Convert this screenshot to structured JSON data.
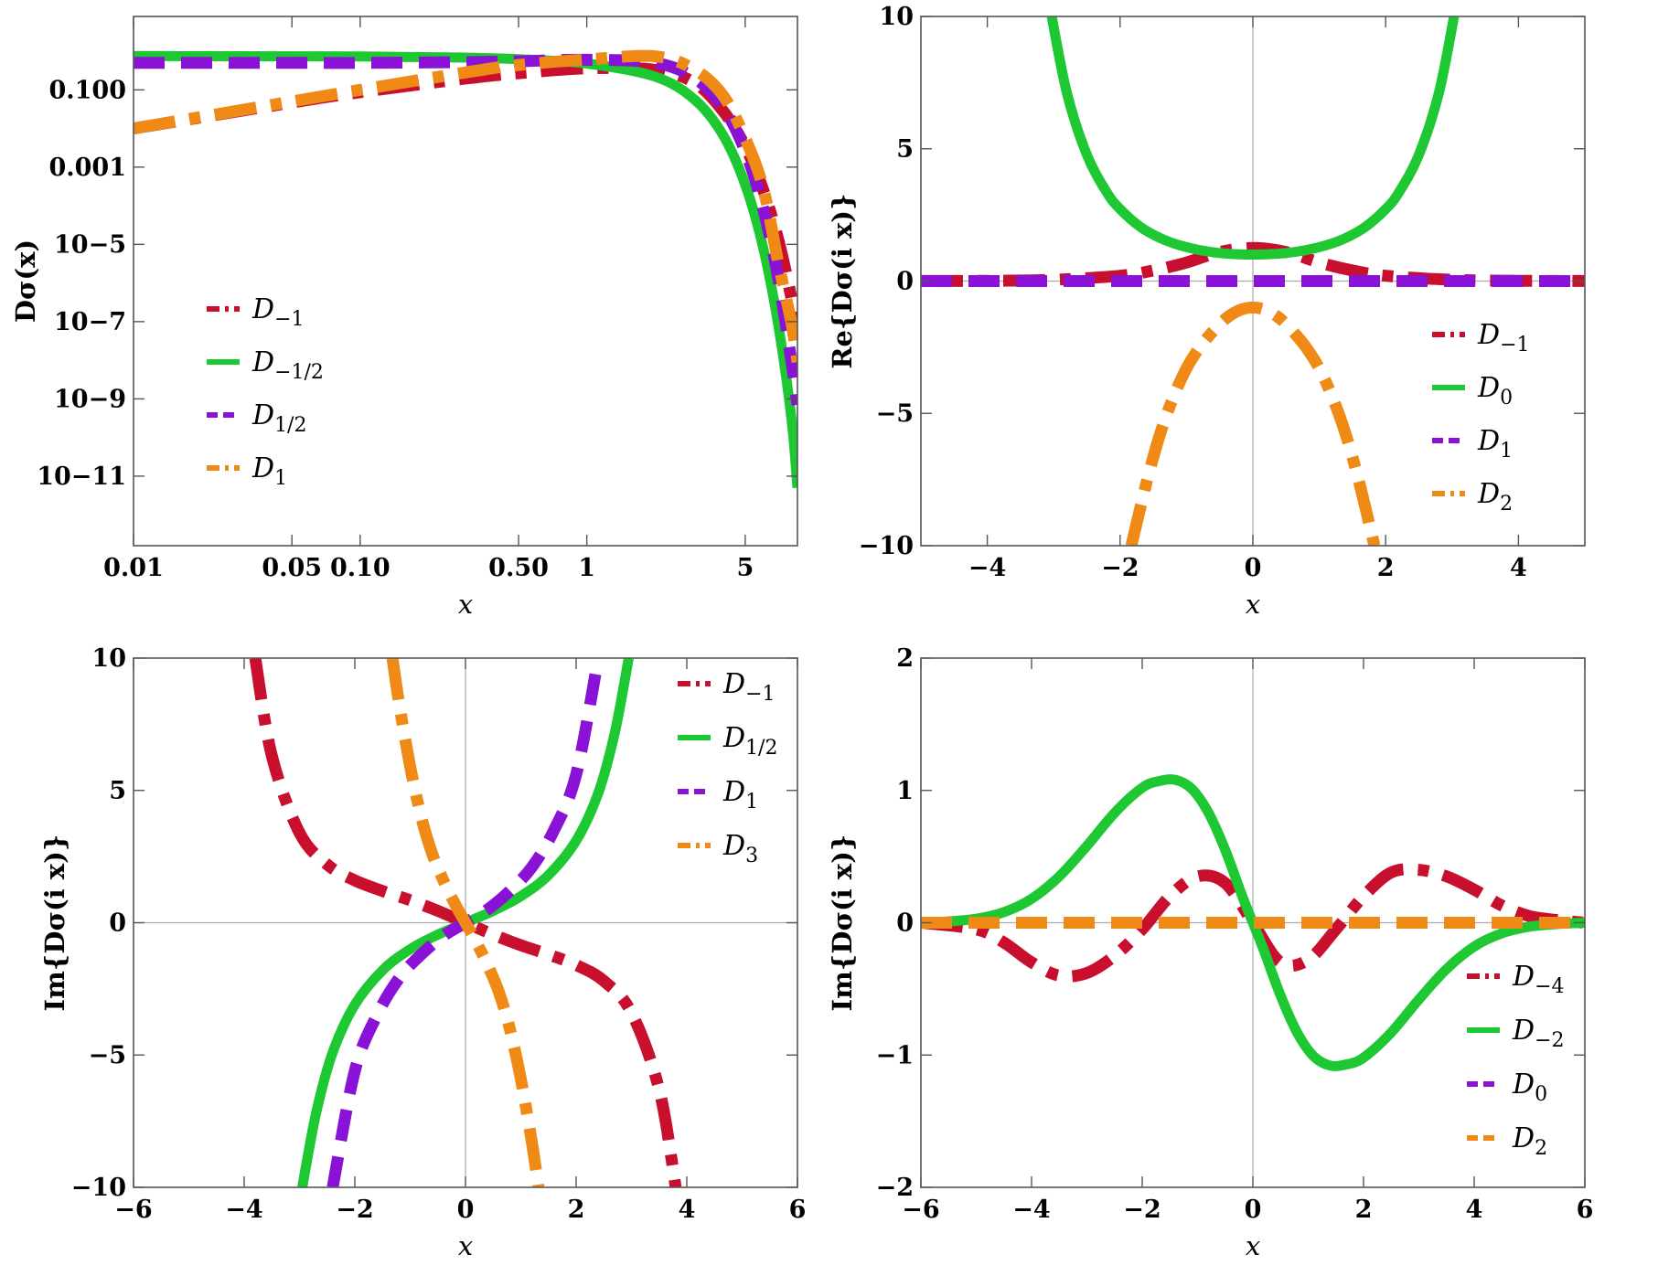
{
  "colors": {
    "red": "#c8102e",
    "green": "#1ec832",
    "purple": "#8a12d6",
    "orange": "#f08a16",
    "axis": "#555555",
    "origin": "#aaaaaa"
  },
  "chart_data": [
    {
      "id": "p1",
      "type": "line",
      "scale": "log-log",
      "xlabel": "x",
      "ylabel": "Dσ(x)",
      "xlim": [
        0.01,
        8.5
      ],
      "ylog_lim": [
        -12.8,
        0.9
      ],
      "xticks": [
        {
          "v": 0.01,
          "label": "0.01"
        },
        {
          "v": 0.05,
          "label": "0.05"
        },
        {
          "v": 0.1,
          "label": "0.10"
        },
        {
          "v": 0.5,
          "label": "0.50"
        },
        {
          "v": 1,
          "label": "1"
        },
        {
          "v": 5,
          "label": "5"
        }
      ],
      "yticks": [
        {
          "e": -1,
          "label": "0.100"
        },
        {
          "e": -3,
          "label": "0.001"
        },
        {
          "e": -5,
          "label": "10−5"
        },
        {
          "e": -7,
          "label": "10−7"
        },
        {
          "e": -9,
          "label": "10−9"
        },
        {
          "e": -11,
          "label": "10−11"
        }
      ],
      "legend_position": "middle-left",
      "series": [
        {
          "name": "D−1",
          "sub": "−1",
          "color": "red",
          "style": "dashdot",
          "x": [
            0.01,
            0.05,
            0.1,
            0.3,
            0.5,
            1,
            2,
            3,
            4,
            5,
            6,
            7,
            8,
            8.5
          ],
          "y": [
            0.01,
            0.047,
            0.087,
            0.2,
            0.27,
            0.36,
            0.33,
            0.15,
            0.028,
            0.0034,
            0.00026,
            1.3e-05,
            4e-07,
            6e-08
          ]
        },
        {
          "name": "D−1/2",
          "sub": "−1/2",
          "color": "green",
          "style": "solid",
          "x": [
            0.01,
            0.05,
            0.1,
            0.3,
            0.5,
            1,
            2,
            3,
            4,
            5,
            6,
            7,
            8,
            8.5
          ],
          "y": [
            0.75,
            0.74,
            0.73,
            0.68,
            0.62,
            0.48,
            0.22,
            0.055,
            0.0066,
            0.00035,
            8.2e-06,
            8e-08,
            3e-10,
            5e-12
          ]
        },
        {
          "name": "D1/2",
          "sub": "1/2",
          "color": "purple",
          "style": "dashed",
          "x": [
            0.01,
            0.05,
            0.1,
            0.3,
            0.5,
            1,
            2,
            3,
            4,
            5,
            6,
            7,
            8,
            8.5
          ],
          "y": [
            0.5,
            0.5,
            0.5,
            0.52,
            0.55,
            0.6,
            0.5,
            0.2,
            0.035,
            0.0026,
            8.55e-05,
            1.3e-06,
            9e-09,
            7e-10
          ]
        },
        {
          "name": "D1",
          "sub": "1",
          "color": "orange",
          "style": "dashdot",
          "x": [
            0.01,
            0.05,
            0.1,
            0.3,
            0.5,
            1,
            2,
            3,
            4,
            5,
            6,
            7,
            8,
            8.5
          ],
          "y": [
            0.01,
            0.05,
            0.1,
            0.29,
            0.44,
            0.61,
            0.74,
            0.33,
            0.07,
            0.0055,
            0.00029,
            3.3e-06,
            9e-08,
            9e-09
          ]
        }
      ]
    },
    {
      "id": "p2",
      "type": "line",
      "xlabel": "x",
      "ylabel": "Re{Dσ(i x)}",
      "xlim": [
        -5,
        5
      ],
      "ylim": [
        -10,
        10
      ],
      "xticks": [
        {
          "v": -4,
          "label": "−4"
        },
        {
          "v": -2,
          "label": "−2"
        },
        {
          "v": 0,
          "label": "0"
        },
        {
          "v": 2,
          "label": "2"
        },
        {
          "v": 4,
          "label": "4"
        }
      ],
      "yticks": [
        {
          "v": -10,
          "label": "−10"
        },
        {
          "v": -5,
          "label": "−5"
        },
        {
          "v": 0,
          "label": "0"
        },
        {
          "v": 5,
          "label": "5"
        },
        {
          "v": 10,
          "label": "10"
        }
      ],
      "legend_position": "right",
      "series": [
        {
          "name": "D−1",
          "sub": "−1",
          "color": "red",
          "style": "dashdot",
          "x": [
            -5,
            -4,
            -3,
            -2,
            -1.5,
            -1,
            -0.5,
            0,
            0.5,
            1,
            1.5,
            2,
            3,
            4,
            5
          ],
          "y": [
            0.005,
            0.01,
            0.05,
            0.2,
            0.4,
            0.7,
            1.1,
            1.25,
            1.1,
            0.7,
            0.4,
            0.2,
            0.05,
            0.01,
            0.005
          ]
        },
        {
          "name": "D0",
          "sub": "0",
          "color": "green",
          "style": "solid",
          "x": [
            -3.03,
            -2.8,
            -2.5,
            -2.2,
            -2,
            -1.7,
            -1.4,
            -1.1,
            -0.8,
            -0.5,
            -0.2,
            0,
            0.2,
            0.5,
            0.8,
            1.1,
            1.4,
            1.7,
            2,
            2.2,
            2.5,
            2.8,
            3.03
          ],
          "y": [
            10,
            7.1,
            4.77,
            3.35,
            2.72,
            2.06,
            1.63,
            1.35,
            1.17,
            1.06,
            1.01,
            1,
            1.01,
            1.06,
            1.17,
            1.35,
            1.63,
            2.06,
            2.72,
            3.35,
            4.77,
            7.1,
            10
          ]
        },
        {
          "name": "D1",
          "sub": "1",
          "color": "purple",
          "style": "dashed",
          "x": [
            -5,
            5
          ],
          "y": [
            0,
            0
          ]
        },
        {
          "name": "D2",
          "sub": "2",
          "color": "orange",
          "style": "dashdot",
          "x": [
            -1.83,
            -1.6,
            -1.4,
            -1.2,
            -1,
            -0.8,
            -0.6,
            -0.4,
            -0.2,
            0,
            0.2,
            0.4,
            0.6,
            0.8,
            1,
            1.2,
            1.4,
            1.6,
            1.83
          ],
          "y": [
            -10,
            -7.6,
            -5.8,
            -4.4,
            -3.3,
            -2.5,
            -1.9,
            -1.4,
            -1.1,
            -1,
            -1.1,
            -1.4,
            -1.9,
            -2.5,
            -3.3,
            -4.4,
            -5.8,
            -7.6,
            -10
          ]
        }
      ]
    },
    {
      "id": "p3",
      "type": "line",
      "xlabel": "x",
      "ylabel": "Im{Dσ(i x)}",
      "xlim": [
        -6,
        6
      ],
      "ylim": [
        -10,
        10
      ],
      "xticks": [
        {
          "v": -6,
          "label": "−6"
        },
        {
          "v": -4,
          "label": "−4"
        },
        {
          "v": -2,
          "label": "−2"
        },
        {
          "v": 0,
          "label": "0"
        },
        {
          "v": 2,
          "label": "2"
        },
        {
          "v": 4,
          "label": "4"
        },
        {
          "v": 6,
          "label": "6"
        }
      ],
      "yticks": [
        {
          "v": -10,
          "label": "−10"
        },
        {
          "v": -5,
          "label": "−5"
        },
        {
          "v": 0,
          "label": "0"
        },
        {
          "v": 5,
          "label": "5"
        },
        {
          "v": 10,
          "label": "10"
        }
      ],
      "legend_position": "top-right",
      "series": [
        {
          "name": "D−1",
          "sub": "−1",
          "color": "red",
          "style": "dashdot",
          "x": [
            -3.8,
            -3.5,
            -3,
            -2.5,
            -2,
            -1.5,
            -1,
            -0.5,
            0,
            0.5,
            1,
            1.5,
            2,
            2.5,
            3,
            3.5,
            3.8
          ],
          "y": [
            10,
            6.3,
            3.4,
            2.2,
            1.6,
            1.2,
            0.85,
            0.45,
            0,
            -0.45,
            -0.85,
            -1.2,
            -1.6,
            -2.2,
            -3.4,
            -6.3,
            -10
          ]
        },
        {
          "name": "D1/2",
          "sub": "1/2",
          "color": "green",
          "style": "solid",
          "x": [
            -2.95,
            -2.7,
            -2.4,
            -2,
            -1.5,
            -1,
            -0.5,
            0,
            0.5,
            1,
            1.5,
            2,
            2.4,
            2.7,
            2.95
          ],
          "y": [
            -10,
            -7.2,
            -4.9,
            -3.1,
            -1.8,
            -1,
            -0.45,
            0,
            0.45,
            1,
            1.8,
            3.1,
            4.9,
            7.2,
            10
          ]
        },
        {
          "name": "D1",
          "sub": "1",
          "color": "purple",
          "style": "dashed",
          "x": [
            -2.4,
            -2,
            -1.6,
            -1.2,
            -0.8,
            -0.4,
            0,
            0.4,
            0.8,
            1.2,
            1.6,
            2,
            2.4
          ],
          "y": [
            -10,
            -5.6,
            -3.5,
            -2.1,
            -1.2,
            -0.5,
            0,
            0.5,
            1.2,
            2.1,
            3.5,
            5.6,
            10
          ]
        },
        {
          "name": "D3",
          "sub": "3",
          "color": "orange",
          "style": "dashdot",
          "x": [
            -1.32,
            -1.2,
            -1,
            -0.8,
            -0.6,
            -0.4,
            -0.2,
            0,
            0.2,
            0.4,
            0.6,
            0.8,
            1,
            1.2,
            1.32
          ],
          "y": [
            10,
            8.3,
            5.9,
            4,
            2.6,
            1.6,
            0.75,
            0,
            -0.75,
            -1.6,
            -2.6,
            -4,
            -5.9,
            -8.3,
            -10
          ]
        }
      ]
    },
    {
      "id": "p4",
      "type": "line",
      "xlabel": "x",
      "ylabel": "Im{Dσ(i x)}",
      "xlim": [
        -6,
        6
      ],
      "ylim": [
        -2,
        2
      ],
      "xticks": [
        {
          "v": -6,
          "label": "−6"
        },
        {
          "v": -4,
          "label": "−4"
        },
        {
          "v": -2,
          "label": "−2"
        },
        {
          "v": 0,
          "label": "0"
        },
        {
          "v": 2,
          "label": "2"
        },
        {
          "v": 4,
          "label": "4"
        },
        {
          "v": 6,
          "label": "6"
        }
      ],
      "yticks": [
        {
          "v": -2,
          "label": "−2"
        },
        {
          "v": -1,
          "label": "−1"
        },
        {
          "v": 0,
          "label": "0"
        },
        {
          "v": 1,
          "label": "1"
        },
        {
          "v": 2,
          "label": "2"
        }
      ],
      "legend_position": "bottom-right",
      "series": [
        {
          "name": "D−4",
          "sub": "−4",
          "color": "red",
          "style": "dashdot",
          "x": [
            -6,
            -5,
            -4.5,
            -4,
            -3.5,
            -3,
            -2.5,
            -2,
            -1.5,
            -1,
            -0.5,
            0,
            0.5,
            1,
            1.5,
            2,
            2.5,
            3,
            3.5,
            4,
            4.5,
            5,
            5.5,
            6
          ],
          "y": [
            0,
            -0.05,
            -0.15,
            -0.3,
            -0.4,
            -0.38,
            -0.25,
            -0.05,
            0.2,
            0.35,
            0.3,
            0,
            -0.3,
            -0.28,
            -0.05,
            0.2,
            0.38,
            0.4,
            0.35,
            0.25,
            0.13,
            0.05,
            0.02,
            0
          ]
        },
        {
          "name": "D−2",
          "sub": "−2",
          "color": "green",
          "style": "solid",
          "x": [
            -6,
            -5.5,
            -5,
            -4.5,
            -4,
            -3.5,
            -3,
            -2.5,
            -2,
            -1.7,
            -1.4,
            -1.1,
            -0.8,
            -0.5,
            -0.2,
            0,
            0.2,
            0.5,
            0.8,
            1.1,
            1.4,
            1.7,
            2,
            2.5,
            3,
            3.5,
            4,
            4.5,
            5,
            5.5,
            6
          ],
          "y": [
            0,
            0.01,
            0.03,
            0.08,
            0.18,
            0.35,
            0.58,
            0.83,
            1.02,
            1.07,
            1.08,
            1.01,
            0.83,
            0.55,
            0.21,
            0,
            -0.21,
            -0.55,
            -0.83,
            -1.01,
            -1.08,
            -1.07,
            -1.02,
            -0.83,
            -0.58,
            -0.35,
            -0.18,
            -0.08,
            -0.03,
            -0.01,
            0
          ]
        },
        {
          "name": "D0",
          "sub": "0",
          "color": "purple",
          "style": "dashed",
          "x": [
            -6,
            6
          ],
          "y": [
            0,
            0
          ]
        },
        {
          "name": "D2",
          "sub": "2",
          "color": "orange",
          "style": "dashed",
          "x": [
            -6,
            6
          ],
          "y": [
            0,
            0
          ]
        }
      ]
    }
  ]
}
